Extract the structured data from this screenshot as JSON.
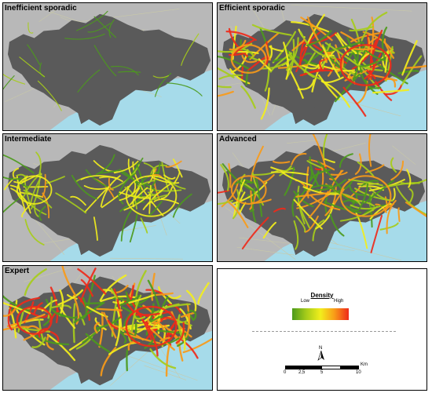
{
  "panels": [
    {
      "title": "Inefficient sporadic",
      "density": 0.05
    },
    {
      "title": "Efficient sporadic",
      "density": 0.9
    },
    {
      "title": "Intermediate",
      "density": 0.55
    },
    {
      "title": "Advanced",
      "density": 0.75
    },
    {
      "title": "Expert",
      "density": 1.0
    }
  ],
  "legend": {
    "title": "Density",
    "low_label": "Low",
    "high_label": "High",
    "north_label": "N",
    "scale_labels": [
      "0",
      "2,5",
      "5",
      "10"
    ],
    "scale_unit": "Km"
  },
  "colors": {
    "sea": "#a6dbea",
    "land_outside": "#b8b8b8",
    "city": "#5a5a5a",
    "ramp": [
      "#4c9a1c",
      "#a6cc1a",
      "#f2ee1c",
      "#f89a18",
      "#ee2a1a"
    ]
  }
}
